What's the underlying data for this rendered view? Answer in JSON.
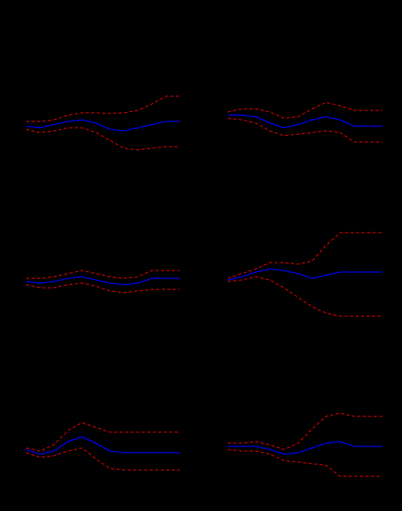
{
  "chart_data": [
    {
      "type": "line",
      "x": [
        1,
        2,
        3,
        4,
        5,
        6,
        7,
        8,
        9,
        10,
        11,
        12
      ],
      "ylim": [
        -1,
        1
      ],
      "grid": false,
      "series": [
        {
          "role": "upper",
          "style": "dashed",
          "color": "#ff0000",
          "values": [
            0.06,
            0.06,
            0.08,
            0.14,
            0.17,
            0.17,
            0.16,
            0.17,
            0.2,
            0.28,
            0.38,
            0.38
          ]
        },
        {
          "role": "mean",
          "style": "solid",
          "color": "#0000ff",
          "values": [
            0.0,
            -0.02,
            0.02,
            0.06,
            0.08,
            0.04,
            -0.04,
            -0.06,
            -0.02,
            0.02,
            0.06,
            0.06
          ]
        },
        {
          "role": "lower",
          "style": "dashed",
          "color": "#ff0000",
          "values": [
            -0.04,
            -0.08,
            -0.06,
            -0.02,
            -0.02,
            -0.08,
            -0.18,
            -0.28,
            -0.3,
            -0.28,
            -0.26,
            -0.26
          ]
        }
      ]
    },
    {
      "type": "line",
      "x": [
        1,
        2,
        3,
        4,
        5,
        6,
        7,
        8,
        9,
        10,
        11,
        12
      ],
      "ylim": [
        -1,
        1
      ],
      "grid": false,
      "series": [
        {
          "role": "upper",
          "style": "dashed",
          "color": "#ff0000",
          "values": [
            0.18,
            0.22,
            0.22,
            0.18,
            0.1,
            0.12,
            0.22,
            0.3,
            0.26,
            0.2,
            0.2,
            0.2
          ]
        },
        {
          "role": "mean",
          "style": "solid",
          "color": "#0000ff",
          "values": [
            0.14,
            0.14,
            0.12,
            0.04,
            -0.02,
            0.02,
            0.08,
            0.12,
            0.08,
            0.0,
            0.0,
            0.0
          ]
        },
        {
          "role": "lower",
          "style": "dashed",
          "color": "#ff0000",
          "values": [
            0.1,
            0.08,
            0.04,
            -0.06,
            -0.12,
            -0.1,
            -0.08,
            -0.06,
            -0.08,
            -0.2,
            -0.2,
            -0.2
          ]
        }
      ]
    },
    {
      "type": "line",
      "x": [
        1,
        2,
        3,
        4,
        5,
        6,
        7,
        8,
        9,
        10,
        11,
        12
      ],
      "ylim": [
        -1,
        1
      ],
      "grid": false,
      "series": [
        {
          "role": "upper",
          "style": "dashed",
          "color": "#ff0000",
          "values": [
            0.04,
            0.04,
            0.06,
            0.1,
            0.14,
            0.1,
            0.06,
            0.04,
            0.06,
            0.14,
            0.14,
            0.14
          ]
        },
        {
          "role": "mean",
          "style": "solid",
          "color": "#0000ff",
          "values": [
            0.0,
            -0.02,
            0.0,
            0.04,
            0.06,
            0.02,
            -0.02,
            -0.04,
            -0.02,
            0.04,
            0.04,
            0.04
          ]
        },
        {
          "role": "lower",
          "style": "dashed",
          "color": "#ff0000",
          "values": [
            -0.04,
            -0.08,
            -0.08,
            -0.04,
            -0.02,
            -0.06,
            -0.12,
            -0.14,
            -0.12,
            -0.1,
            -0.1,
            -0.1
          ]
        }
      ]
    },
    {
      "type": "line",
      "x": [
        1,
        2,
        3,
        4,
        5,
        6,
        7,
        8,
        9,
        10,
        11,
        12
      ],
      "ylim": [
        -1,
        1
      ],
      "grid": false,
      "series": [
        {
          "role": "upper",
          "style": "dashed",
          "color": "#ff0000",
          "values": [
            0.04,
            0.1,
            0.16,
            0.24,
            0.24,
            0.22,
            0.26,
            0.46,
            0.62,
            0.62,
            0.62,
            0.62
          ]
        },
        {
          "role": "mean",
          "style": "solid",
          "color": "#0000ff",
          "values": [
            0.02,
            0.06,
            0.12,
            0.16,
            0.14,
            0.1,
            0.04,
            0.08,
            0.12,
            0.12,
            0.12,
            0.12
          ]
        },
        {
          "role": "lower",
          "style": "dashed",
          "color": "#ff0000",
          "values": [
            0.0,
            0.02,
            0.06,
            0.02,
            -0.08,
            -0.2,
            -0.32,
            -0.4,
            -0.44,
            -0.44,
            -0.44,
            -0.44
          ]
        }
      ]
    },
    {
      "type": "line",
      "x": [
        1,
        2,
        3,
        4,
        5,
        6,
        7,
        8,
        9,
        10,
        11,
        12
      ],
      "ylim": [
        -1,
        1
      ],
      "grid": false,
      "series": [
        {
          "role": "upper",
          "style": "dashed",
          "color": "#ff0000",
          "values": [
            0.02,
            -0.02,
            0.06,
            0.24,
            0.34,
            0.28,
            0.22,
            0.22,
            0.22,
            0.22,
            0.22,
            0.22
          ]
        },
        {
          "role": "mean",
          "style": "solid",
          "color": "#0000ff",
          "values": [
            0.0,
            -0.06,
            -0.02,
            0.1,
            0.16,
            0.08,
            -0.02,
            -0.04,
            -0.04,
            -0.04,
            -0.04,
            -0.04
          ]
        },
        {
          "role": "lower",
          "style": "dashed",
          "color": "#ff0000",
          "values": [
            -0.04,
            -0.1,
            -0.08,
            -0.02,
            0.02,
            -0.12,
            -0.24,
            -0.26,
            -0.26,
            -0.26,
            -0.26,
            -0.26
          ]
        }
      ]
    },
    {
      "type": "line",
      "x": [
        1,
        2,
        3,
        4,
        5,
        6,
        7,
        8,
        9,
        10,
        11,
        12
      ],
      "ylim": [
        -1,
        1
      ],
      "grid": false,
      "series": [
        {
          "role": "upper",
          "style": "dashed",
          "color": "#ff0000",
          "values": [
            0.08,
            0.08,
            0.1,
            0.06,
            0.0,
            0.08,
            0.26,
            0.42,
            0.46,
            0.42,
            0.42,
            0.42
          ]
        },
        {
          "role": "mean",
          "style": "solid",
          "color": "#0000ff",
          "values": [
            0.04,
            0.04,
            0.04,
            0.0,
            -0.06,
            -0.04,
            0.02,
            0.08,
            0.1,
            0.04,
            0.04,
            0.04
          ]
        },
        {
          "role": "lower",
          "style": "dashed",
          "color": "#ff0000",
          "values": [
            0.0,
            -0.02,
            -0.02,
            -0.06,
            -0.14,
            -0.16,
            -0.18,
            -0.2,
            -0.34,
            -0.34,
            -0.34,
            -0.34
          ]
        }
      ]
    }
  ]
}
